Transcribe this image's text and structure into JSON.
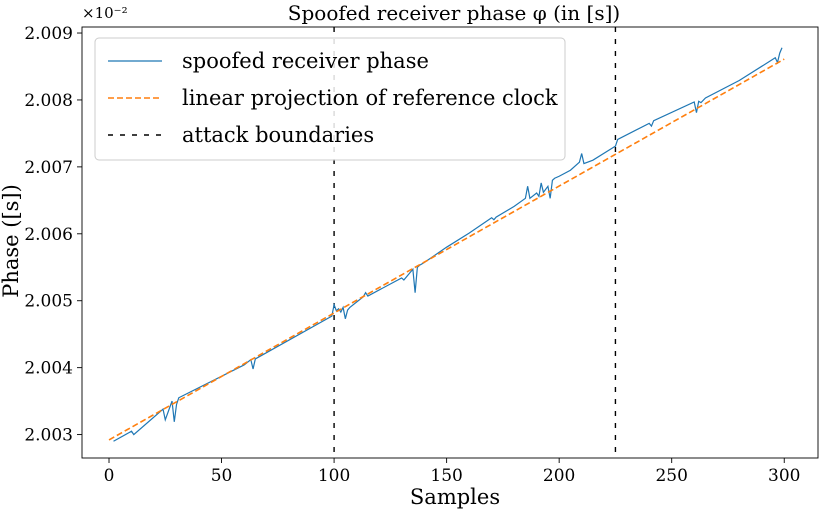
{
  "chart_data": {
    "type": "line",
    "title": "Spoofed receiver phase φ (in [s])",
    "xlabel": "Samples",
    "ylabel": "Phase ([s])",
    "y_scale_label": "×10⁻²",
    "xlim": [
      -12,
      315
    ],
    "ylim": [
      2.00265,
      2.00909
    ],
    "xticks": [
      0,
      50,
      100,
      150,
      200,
      250,
      300
    ],
    "xtick_labels": [
      "0",
      "50",
      "100",
      "150",
      "200",
      "250",
      "300"
    ],
    "yticks": [
      2.003,
      2.004,
      2.005,
      2.006,
      2.007,
      2.008,
      2.009
    ],
    "ytick_labels": [
      "2.003",
      "2.004",
      "2.005",
      "2.006",
      "2.007",
      "2.008",
      "2.009"
    ],
    "grid": false,
    "legend_position": "top-left",
    "series": [
      {
        "name": "spoofed receiver phase",
        "color": "#1f77b4",
        "style": "solid",
        "x": [
          2,
          10,
          11,
          24,
          25,
          28,
          29,
          30,
          31,
          60,
          63,
          64,
          65,
          99,
          100,
          101,
          102,
          103,
          104,
          105,
          106,
          107,
          113,
          114,
          115,
          130,
          131,
          135,
          136,
          137,
          138,
          140,
          150,
          160,
          170,
          171,
          172,
          180,
          185,
          186,
          187,
          190,
          191,
          192,
          193,
          195,
          196,
          197,
          198,
          200,
          205,
          209,
          210,
          211,
          215,
          225,
          226,
          240,
          241,
          242,
          260,
          261,
          262,
          263,
          265,
          280,
          296,
          297,
          298,
          299
        ],
        "values": [
          2.0029,
          2.00305,
          2.003,
          2.00338,
          2.00322,
          2.0035,
          2.00319,
          2.00345,
          2.00355,
          2.00404,
          2.00412,
          2.00398,
          2.00413,
          2.00477,
          2.00494,
          2.00485,
          2.00488,
          2.00483,
          2.0049,
          2.00473,
          2.00486,
          2.0049,
          2.00506,
          2.00512,
          2.00507,
          2.00534,
          2.00531,
          2.00547,
          2.00512,
          2.0055,
          2.00553,
          2.00557,
          2.0058,
          2.00601,
          2.00624,
          2.00621,
          2.00625,
          2.00641,
          2.00653,
          2.00671,
          2.00653,
          2.00661,
          2.00656,
          2.00676,
          2.00662,
          2.00671,
          2.00653,
          2.0068,
          2.00683,
          2.00686,
          2.00695,
          2.00707,
          2.0072,
          2.00705,
          2.0071,
          2.00731,
          2.00741,
          2.00765,
          2.00761,
          2.00769,
          2.00797,
          2.00781,
          2.00798,
          2.00796,
          2.00803,
          2.00829,
          2.00863,
          2.00856,
          2.0087,
          2.00878
        ]
      },
      {
        "name": "linear projection of reference clock",
        "color": "#ff7f0e",
        "style": "dashed",
        "x": [
          0,
          300
        ],
        "values": [
          2.00292,
          2.00861
        ]
      }
    ],
    "annotations": [
      {
        "name": "attack boundaries",
        "type": "vline",
        "color": "#000000",
        "style": "dashed",
        "x": [
          100,
          225
        ]
      }
    ]
  }
}
